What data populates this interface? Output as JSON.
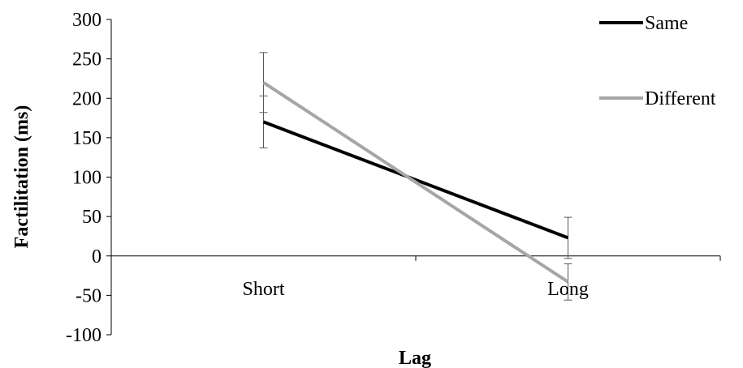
{
  "chart_data": {
    "type": "line",
    "title": "",
    "xlabel": "Lag",
    "ylabel": "Factilitation (ms)",
    "categories": [
      "Short",
      "Long"
    ],
    "ylim": [
      -100,
      300
    ],
    "yticks": [
      -100,
      -50,
      0,
      50,
      100,
      150,
      200,
      250,
      300
    ],
    "grid": false,
    "legend_position": "right",
    "series": [
      {
        "name": "Same",
        "values": [
          170,
          23
        ],
        "error": [
          33,
          26
        ],
        "color": "#000000"
      },
      {
        "name": "Different",
        "values": [
          220,
          -33
        ],
        "error": [
          38,
          23
        ],
        "color": "#a6a6a6"
      }
    ]
  }
}
